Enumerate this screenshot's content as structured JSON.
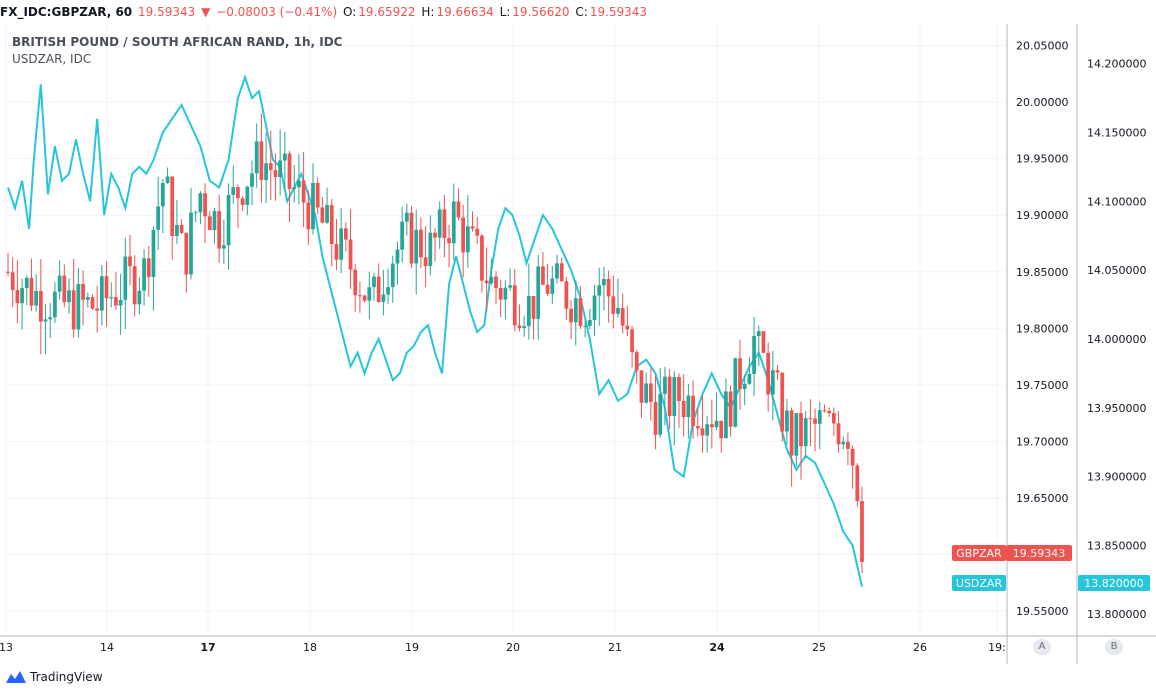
{
  "header": {
    "symbol": "FX_IDC:GBPZAR, 60",
    "last": "19.59343",
    "change_icon": "down-triangle",
    "change": "−0.08003 (−0.41%)",
    "open_label": "O:",
    "open": "19.65922",
    "high_label": "H:",
    "high": "19.66634",
    "low_label": "L:",
    "low": "19.56620",
    "close_label": "C:",
    "close": "19.59343"
  },
  "legend": {
    "main": "BRITISH POUND / SOUTH AFRICAN RAND, 1h, IDC",
    "compare": "USDZAR, IDC"
  },
  "price_tags": {
    "gbpzar_label": "GBPZAR",
    "gbpzar_value": "19.59343",
    "usdzar_label": "USDZAR",
    "usdzar_value": "13.820000"
  },
  "axis_buttons": {
    "a": "A",
    "b": "B"
  },
  "footer": {
    "brand": "TradingView"
  },
  "colors": {
    "up": "#26a69a",
    "down": "#ef5350",
    "line": "#26c6da",
    "grid": "#f0f3fa",
    "axis": "#b2b5be",
    "text": "#131722"
  },
  "chart_data": {
    "type": "candlestick",
    "title": "BRITISH POUND / SOUTH AFRICAN RAND, 1h, IDC",
    "x_ticks": [
      "13",
      "14",
      "17",
      "18",
      "19",
      "20",
      "21",
      "24",
      "25",
      "26",
      "19:"
    ],
    "left_axis_ticks": [
      "20.05000",
      "20.00000",
      "19.95000",
      "19.90000",
      "19.85000",
      "19.80000",
      "19.75000",
      "19.70000",
      "19.65000",
      "19.60000",
      "19.55000"
    ],
    "right_axis_ticks": [
      "14.200000",
      "14.150000",
      "14.100000",
      "14.050000",
      "14.000000",
      "13.950000",
      "13.900000",
      "13.850000",
      "13.800000"
    ],
    "left_ylim": [
      19.535,
      20.062
    ],
    "right_ylim": [
      13.79,
      14.223
    ],
    "grid": true,
    "series": [
      {
        "name": "GBPZAR",
        "kind": "candles",
        "anchors": [
          [
            0,
            19.85,
            19.87,
            19.78
          ],
          [
            12,
            19.83,
            19.86,
            19.74
          ],
          [
            25,
            19.82,
            19.91,
            19.75
          ],
          [
            38,
            19.82,
            19.86,
            19.76
          ],
          [
            50,
            19.84,
            19.88,
            19.79
          ],
          [
            58,
            19.85,
            19.9,
            19.82
          ],
          [
            66,
            19.93,
            19.96,
            19.8
          ],
          [
            75,
            19.86,
            19.89,
            19.77
          ],
          [
            82,
            19.92,
            19.97,
            19.81
          ],
          [
            90,
            19.89,
            19.96,
            19.82
          ],
          [
            100,
            19.93,
            20.01,
            19.9
          ],
          [
            108,
            19.95,
            19.99,
            19.9
          ],
          [
            118,
            19.93,
            19.98,
            19.89
          ],
          [
            128,
            19.91,
            19.95,
            19.86
          ],
          [
            138,
            19.88,
            19.93,
            19.83
          ],
          [
            148,
            19.85,
            19.9,
            19.81
          ],
          [
            155,
            19.82,
            19.87,
            19.79
          ],
          [
            162,
            19.86,
            19.9,
            19.82
          ],
          [
            170,
            19.88,
            19.91,
            19.83
          ],
          [
            180,
            19.87,
            19.9,
            19.83
          ],
          [
            190,
            19.9,
            19.93,
            19.86
          ],
          [
            198,
            19.87,
            19.92,
            19.83
          ],
          [
            206,
            19.84,
            19.88,
            19.8
          ],
          [
            214,
            19.83,
            19.87,
            19.8
          ],
          [
            222,
            19.82,
            19.86,
            19.79
          ],
          [
            230,
            19.84,
            19.87,
            19.79
          ],
          [
            238,
            19.83,
            19.86,
            19.79
          ],
          [
            246,
            19.82,
            19.85,
            19.78
          ],
          [
            252,
            19.84,
            19.86,
            19.8
          ],
          [
            260,
            19.82,
            19.85,
            19.76
          ],
          [
            268,
            19.75,
            19.79,
            19.71
          ],
          [
            276,
            19.73,
            19.77,
            19.68
          ],
          [
            286,
            19.74,
            19.76,
            19.7
          ],
          [
            296,
            19.73,
            19.76,
            19.69
          ],
          [
            305,
            19.72,
            19.75,
            19.69
          ],
          [
            312,
            19.76,
            19.79,
            19.7
          ],
          [
            318,
            19.79,
            19.81,
            19.74
          ],
          [
            326,
            19.75,
            19.78,
            19.69
          ],
          [
            334,
            19.7,
            19.73,
            19.66
          ],
          [
            342,
            19.71,
            19.74,
            19.67
          ],
          [
            350,
            19.72,
            19.73,
            19.68
          ],
          [
            358,
            19.71,
            19.73,
            19.62
          ],
          [
            364,
            19.64,
            19.66,
            19.57
          ]
        ]
      },
      {
        "name": "USDZAR",
        "kind": "line",
        "points": [
          [
            0,
            14.11
          ],
          [
            3,
            14.095
          ],
          [
            6,
            14.115
          ],
          [
            9,
            14.08
          ],
          [
            11,
            14.13
          ],
          [
            14,
            14.185
          ],
          [
            17,
            14.105
          ],
          [
            20,
            14.14
          ],
          [
            23,
            14.115
          ],
          [
            26,
            14.12
          ],
          [
            29,
            14.145
          ],
          [
            32,
            14.12
          ],
          [
            35,
            14.1
          ],
          [
            38,
            14.16
          ],
          [
            41,
            14.09
          ],
          [
            44,
            14.12
          ],
          [
            47,
            14.11
          ],
          [
            50,
            14.095
          ],
          [
            53,
            14.12
          ],
          [
            56,
            14.125
          ],
          [
            59,
            14.12
          ],
          [
            62,
            14.13
          ],
          [
            66,
            14.15
          ],
          [
            70,
            14.16
          ],
          [
            74,
            14.17
          ],
          [
            78,
            14.155
          ],
          [
            82,
            14.14
          ],
          [
            86,
            14.115
          ],
          [
            90,
            14.11
          ],
          [
            94,
            14.13
          ],
          [
            98,
            14.175
          ],
          [
            101,
            14.19
          ],
          [
            104,
            14.175
          ],
          [
            107,
            14.18
          ],
          [
            110,
            14.155
          ],
          [
            113,
            14.13
          ],
          [
            116,
            14.125
          ],
          [
            119,
            14.1
          ],
          [
            122,
            14.11
          ],
          [
            125,
            14.12
          ],
          [
            128,
            14.105
          ],
          [
            131,
            14.09
          ],
          [
            134,
            14.06
          ],
          [
            137,
            14.04
          ],
          [
            140,
            14.02
          ],
          [
            143,
            14.0
          ],
          [
            146,
            13.98
          ],
          [
            149,
            13.99
          ],
          [
            152,
            13.975
          ],
          [
            155,
            13.99
          ],
          [
            158,
            14.0
          ],
          [
            161,
            13.985
          ],
          [
            164,
            13.97
          ],
          [
            167,
            13.975
          ],
          [
            170,
            13.99
          ],
          [
            173,
            13.995
          ],
          [
            176,
            14.005
          ],
          [
            179,
            14.01
          ],
          [
            182,
            13.99
          ],
          [
            185,
            13.975
          ],
          [
            188,
            14.04
          ],
          [
            191,
            14.06
          ],
          [
            194,
            14.04
          ],
          [
            197,
            14.02
          ],
          [
            200,
            14.005
          ],
          [
            203,
            14.01
          ],
          [
            206,
            14.05
          ],
          [
            209,
            14.08
          ],
          [
            212,
            14.095
          ],
          [
            215,
            14.09
          ],
          [
            218,
            14.075
          ],
          [
            221,
            14.055
          ],
          [
            224,
            14.07
          ],
          [
            228,
            14.09
          ],
          [
            232,
            14.08
          ],
          [
            236,
            14.065
          ],
          [
            240,
            14.05
          ],
          [
            244,
            14.03
          ],
          [
            248,
            14.0
          ],
          [
            252,
            13.96
          ],
          [
            256,
            13.97
          ],
          [
            260,
            13.955
          ],
          [
            264,
            13.96
          ],
          [
            268,
            13.98
          ],
          [
            272,
            13.985
          ],
          [
            276,
            13.975
          ],
          [
            280,
            13.95
          ],
          [
            284,
            13.905
          ],
          [
            288,
            13.9
          ],
          [
            292,
            13.94
          ],
          [
            296,
            13.96
          ],
          [
            300,
            13.975
          ],
          [
            304,
            13.96
          ],
          [
            308,
            13.95
          ],
          [
            312,
            13.965
          ],
          [
            316,
            13.98
          ],
          [
            320,
            13.99
          ],
          [
            324,
            13.97
          ],
          [
            328,
            13.945
          ],
          [
            332,
            13.92
          ],
          [
            336,
            13.905
          ],
          [
            340,
            13.915
          ],
          [
            344,
            13.91
          ],
          [
            348,
            13.895
          ],
          [
            352,
            13.88
          ],
          [
            356,
            13.86
          ],
          [
            360,
            13.85
          ],
          [
            362,
            13.835
          ],
          [
            364,
            13.82
          ]
        ]
      }
    ]
  }
}
